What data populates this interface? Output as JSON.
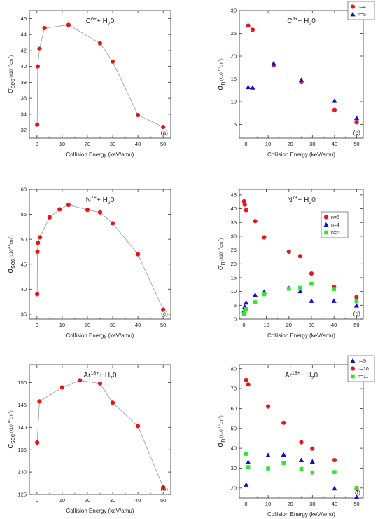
{
  "chart_data": [
    {
      "type": "scatter",
      "panel_letter": "(a)",
      "title": {
        "base": "C",
        "sup": "6+",
        "tail": "+ H",
        "sub": "2",
        "end": "0"
      },
      "xlabel": "Collision Energy (keV/amu)",
      "ylabel": {
        "base": "σ",
        "sub": "sec",
        "unit_open": " (x10",
        "unit_sup1": "-16",
        "unit_mid": "cm",
        "unit_sup2": "2",
        "unit_close": ")"
      },
      "xlim": [
        -3,
        53
      ],
      "ylim": [
        31,
        47
      ],
      "xticks": [
        0,
        10,
        20,
        30,
        40,
        50
      ],
      "yticks": [
        32,
        34,
        36,
        38,
        40,
        42,
        44,
        46
      ],
      "connect_line": true,
      "legend": null,
      "series": [
        {
          "marker": "circle",
          "color": "#e8161b",
          "x": [
            0.1,
            0.3,
            1,
            3,
            12.5,
            25,
            30,
            40,
            50
          ],
          "y": [
            32.7,
            40.0,
            42.2,
            44.8,
            45.2,
            42.9,
            40.6,
            33.9,
            32.4
          ]
        }
      ]
    },
    {
      "type": "scatter",
      "panel_letter": "(b)",
      "title": {
        "base": "C",
        "sup": "6+",
        "tail": "+ H",
        "sub": "2",
        "end": "0"
      },
      "xlabel": "Collision Energy (keV/amu)",
      "ylabel": {
        "base": "σ",
        "sub": "n",
        "unit_open": " (x10",
        "unit_sup1": "-16",
        "unit_mid": "cm",
        "unit_sup2": "2",
        "unit_close": ")"
      },
      "xlim": [
        -3,
        53
      ],
      "ylim": [
        2,
        30
      ],
      "xticks": [
        0,
        10,
        20,
        30,
        40,
        50
      ],
      "yticks": [
        5,
        10,
        15,
        20,
        25,
        30
      ],
      "connect_line": false,
      "legend": "top-right",
      "series": [
        {
          "name": "n=4",
          "marker": "circle",
          "color": "#e8161b",
          "x": [
            1,
            3,
            12.5,
            25,
            40,
            50
          ],
          "y": [
            26.7,
            25.8,
            18.0,
            14.3,
            8.2,
            5.5
          ]
        },
        {
          "name": "n=5",
          "marker": "triangle",
          "color": "#1010c8",
          "x": [
            1,
            3,
            12.5,
            25,
            40,
            50
          ],
          "y": [
            13.2,
            13.1,
            18.4,
            14.8,
            10.2,
            6.4
          ]
        }
      ]
    },
    {
      "type": "scatter",
      "panel_letter": "(c)",
      "title": {
        "base": "N",
        "sup": "7+",
        "tail": "+ H",
        "sub": "2",
        "end": "0"
      },
      "xlabel": "Collision Energy (keV/amu)",
      "ylabel": {
        "base": "σ",
        "sub": "sec",
        "unit_open": " (x10",
        "unit_sup1": "-16",
        "unit_mid": "cm",
        "unit_sup2": "2",
        "unit_close": ")"
      },
      "xlim": [
        -3,
        53
      ],
      "ylim": [
        34,
        60
      ],
      "xticks": [
        0,
        10,
        20,
        30,
        40,
        50
      ],
      "yticks": [
        35,
        40,
        45,
        50,
        55,
        60
      ],
      "connect_line": true,
      "legend": null,
      "series": [
        {
          "marker": "circle",
          "color": "#e8161b",
          "x": [
            0.1,
            0.2,
            0.4,
            1.2,
            5,
            9,
            12.5,
            20,
            25,
            30,
            40,
            50
          ],
          "y": [
            39.0,
            47.5,
            49.3,
            50.4,
            54.4,
            56.0,
            56.9,
            55.9,
            55.4,
            53.2,
            47.0,
            35.9
          ]
        }
      ]
    },
    {
      "type": "scatter",
      "panel_letter": "(d)",
      "title": {
        "base": "N",
        "sup": "7+",
        "tail": "+ H",
        "sub": "2",
        "end": "0"
      },
      "xlabel": "Collision Energy (keV/amu)",
      "ylabel": {
        "base": "σ",
        "sub": "n",
        "unit_open": " (x10",
        "unit_sup1": "-16",
        "unit_mid": "cm",
        "unit_sup2": "2",
        "unit_close": ")"
      },
      "xlim": [
        -2,
        53
      ],
      "ylim": [
        0,
        47
      ],
      "xticks": [
        0,
        10,
        20,
        30,
        40,
        50
      ],
      "yticks": [
        0,
        5,
        10,
        15,
        20,
        25,
        30,
        35,
        40,
        45
      ],
      "connect_line": false,
      "legend": "upper-right",
      "series": [
        {
          "name": "n=5",
          "marker": "circle",
          "color": "#e8161b",
          "x": [
            0.1,
            0.4,
            1,
            5,
            9,
            20,
            25,
            30,
            40,
            50
          ],
          "y": [
            42.7,
            41.5,
            39.5,
            35.5,
            29.6,
            24.4,
            22.8,
            16.5,
            11.7,
            8.0
          ]
        },
        {
          "name": "n=4",
          "marker": "triangle",
          "color": "#1010c8",
          "x": [
            0.1,
            0.4,
            1,
            5,
            9,
            20,
            25,
            30,
            40,
            50
          ],
          "y": [
            3.1,
            4.5,
            6.0,
            8.8,
            9.9,
            11.2,
            10.1,
            6.6,
            6.6,
            4.9
          ]
        },
        {
          "name": "n=6",
          "marker": "square",
          "color": "#2ee82e",
          "x": [
            0.1,
            0.4,
            1,
            5,
            9,
            20,
            25,
            30,
            40,
            50
          ],
          "y": [
            1.8,
            3.0,
            3.6,
            6.1,
            9.0,
            11.0,
            11.3,
            12.8,
            10.9,
            6.5
          ]
        }
      ]
    },
    {
      "type": "scatter",
      "panel_letter": "(e)",
      "title": {
        "base": "Ar",
        "sup": "18+",
        "tail": "+ H",
        "sub": "2",
        "end": "0"
      },
      "xlabel": "Collision Energy (keV/amu)",
      "ylabel": {
        "base": "σ",
        "sub": "sec",
        "unit_open": " (x10",
        "unit_sup1": "-16",
        "unit_mid": "cm",
        "unit_sup2": "2",
        "unit_close": ")"
      },
      "xlim": [
        -3,
        53
      ],
      "ylim": [
        125,
        154
      ],
      "xticks": [
        0,
        10,
        20,
        30,
        40,
        50
      ],
      "yticks": [
        125,
        130,
        135,
        140,
        145,
        150
      ],
      "connect_line": true,
      "legend": null,
      "series": [
        {
          "marker": "circle",
          "color": "#e8161b",
          "x": [
            0.1,
            1,
            10,
            17,
            25,
            30,
            40,
            50
          ],
          "y": [
            136.6,
            145.8,
            148.9,
            150.5,
            149.8,
            145.5,
            140.3,
            126.6
          ]
        }
      ]
    },
    {
      "type": "scatter",
      "panel_letter": "(f)",
      "title": {
        "base": "Ar",
        "sup": "18+",
        "tail": "+ H",
        "sub": "2",
        "end": "0"
      },
      "xlabel": "Collision Energy (keV/amu)",
      "ylabel": {
        "base": "σ",
        "sub": "n",
        "unit_open": " (x10",
        "unit_sup1": "-16",
        "unit_mid": "cm",
        "unit_sup2": "2",
        "unit_close": ")"
      },
      "xlim": [
        -3,
        53
      ],
      "ylim": [
        15,
        82
      ],
      "xticks": [
        0,
        10,
        20,
        30,
        40,
        50
      ],
      "yticks": [
        20,
        30,
        40,
        50,
        60,
        70,
        80
      ],
      "connect_line": false,
      "legend": "top-right",
      "series": [
        {
          "name": "n=9",
          "marker": "triangle",
          "color": "#1010c8",
          "x": [
            0.1,
            1,
            10,
            17,
            25,
            30,
            40,
            50
          ],
          "y": [
            21.7,
            33.0,
            36.5,
            36.8,
            34.0,
            33.3,
            19.8,
            15.5
          ]
        },
        {
          "name": "n=10",
          "marker": "circle",
          "color": "#e8161b",
          "x": [
            0.1,
            1,
            10,
            17,
            25,
            30,
            40,
            50
          ],
          "y": [
            74.3,
            72.0,
            61.0,
            52.8,
            43.0,
            39.8,
            34.0,
            19.6
          ]
        },
        {
          "name": "n=11",
          "marker": "square",
          "color": "#2ee82e",
          "x": [
            0.1,
            1,
            10,
            17,
            25,
            30,
            40,
            50
          ],
          "y": [
            37.2,
            30.5,
            29.8,
            32.6,
            29.6,
            27.8,
            28.0,
            20.0
          ]
        }
      ]
    }
  ]
}
